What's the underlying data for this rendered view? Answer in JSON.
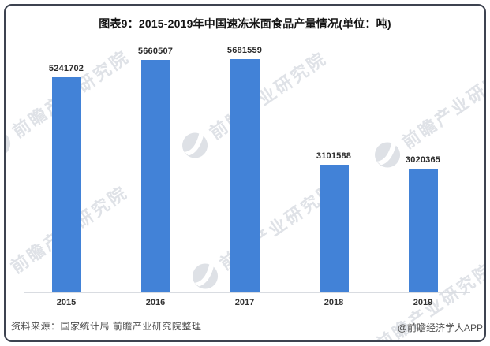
{
  "title": "图表9：2015-2019年中国速冻米面食品产量情况(单位：吨)",
  "chart_data": {
    "type": "bar",
    "title": "图表9：2015-2019年中国速冻米面食品产量情况(单位：吨)",
    "unit": "吨",
    "categories": [
      "2015",
      "2016",
      "2017",
      "2018",
      "2019"
    ],
    "values": [
      5241702,
      5660507,
      5681559,
      3101588,
      3020365
    ],
    "data_labels": [
      "5241702",
      "5660507",
      "5681559",
      "3101588",
      "3020365"
    ],
    "xlabel": "",
    "ylabel": "",
    "ylim": [
      0,
      5681559
    ],
    "grid": false,
    "legend": false,
    "bar_color": "#4282d7",
    "axis_line_color": "#d9dce1"
  },
  "footer": {
    "source": "资料来源：国家统计局 前瞻产业研究院整理",
    "credit": "@前瞻经济学人APP"
  },
  "watermark": {
    "text": "前瞻产业研究院",
    "logo": "qianzhan-logo",
    "color": "#b2b9c5"
  }
}
